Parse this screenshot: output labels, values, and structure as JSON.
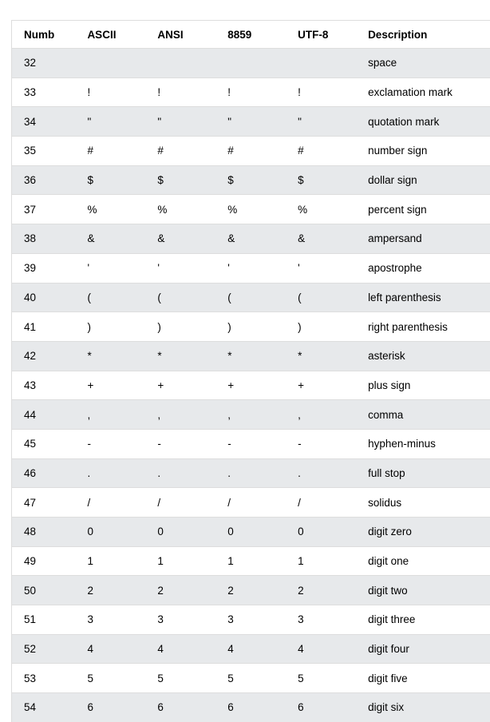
{
  "table": {
    "headers": [
      "Numb",
      "ASCII",
      "ANSI",
      "8859",
      "UTF-8",
      "Description"
    ],
    "rows": [
      [
        "32",
        "",
        "",
        "",
        "",
        "space"
      ],
      [
        "33",
        "!",
        "!",
        "!",
        "!",
        "exclamation mark"
      ],
      [
        "34",
        "\"",
        "\"",
        "\"",
        "\"",
        "quotation mark"
      ],
      [
        "35",
        "#",
        "#",
        "#",
        "#",
        "number sign"
      ],
      [
        "36",
        "$",
        "$",
        "$",
        "$",
        "dollar sign"
      ],
      [
        "37",
        "%",
        "%",
        "%",
        "%",
        "percent sign"
      ],
      [
        "38",
        "&",
        "&",
        "&",
        "&",
        "ampersand"
      ],
      [
        "39",
        "'",
        "'",
        "'",
        "'",
        "apostrophe"
      ],
      [
        "40",
        "(",
        "(",
        "(",
        "(",
        "left parenthesis"
      ],
      [
        "41",
        ")",
        ")",
        ")",
        ")",
        "right parenthesis"
      ],
      [
        "42",
        "*",
        "*",
        "*",
        "*",
        "asterisk"
      ],
      [
        "43",
        "+",
        "+",
        "+",
        "+",
        "plus sign"
      ],
      [
        "44",
        ",",
        ",",
        ",",
        ",",
        "comma"
      ],
      [
        "45",
        "-",
        "-",
        "-",
        "-",
        "hyphen-minus"
      ],
      [
        "46",
        ".",
        ".",
        ".",
        ".",
        "full stop"
      ],
      [
        "47",
        "/",
        "/",
        "/",
        "/",
        "solidus"
      ],
      [
        "48",
        "0",
        "0",
        "0",
        "0",
        "digit zero"
      ],
      [
        "49",
        "1",
        "1",
        "1",
        "1",
        "digit one"
      ],
      [
        "50",
        "2",
        "2",
        "2",
        "2",
        "digit two"
      ],
      [
        "51",
        "3",
        "3",
        "3",
        "3",
        "digit three"
      ],
      [
        "52",
        "4",
        "4",
        "4",
        "4",
        "digit four"
      ],
      [
        "53",
        "5",
        "5",
        "5",
        "5",
        "digit five"
      ],
      [
        "54",
        "6",
        "6",
        "6",
        "6",
        "digit six"
      ]
    ]
  }
}
